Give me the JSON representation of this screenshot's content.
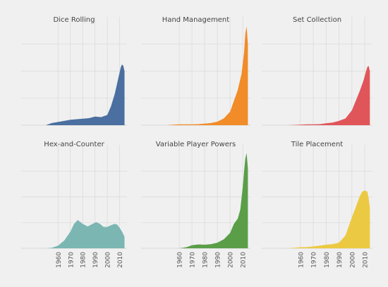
{
  "chart_data": {
    "type": "area",
    "layout": "small-multiples-2x3",
    "xlim": [
      1930,
      2016
    ],
    "xticks": [
      "1960",
      "1970",
      "1980",
      "1990",
      "2000",
      "2010"
    ],
    "grid": true,
    "shared_y_axis": true,
    "y_axis_labels_shown": false,
    "panels": [
      {
        "title": "Dice Rolling",
        "color": "#4a6fa0",
        "x": [
          1930,
          1950,
          1955,
          1960,
          1965,
          1970,
          1975,
          1980,
          1985,
          1990,
          1995,
          2000,
          2003,
          2006,
          2009,
          2011,
          2012,
          2013,
          2014
        ],
        "y": [
          0,
          0,
          0.8,
          1.2,
          1.6,
          2.0,
          2.2,
          2.4,
          2.6,
          3.2,
          3.0,
          3.8,
          7.0,
          11.5,
          17.5,
          21.5,
          22.5,
          22,
          20
        ]
      },
      {
        "title": "Hand Management",
        "color": "#f18c29",
        "x": [
          1930,
          1950,
          1955,
          1960,
          1965,
          1970,
          1975,
          1980,
          1985,
          1990,
          1995,
          2000,
          2003,
          2006,
          2009,
          2011,
          2012,
          2013,
          2014
        ],
        "y": [
          0,
          0,
          0.2,
          0.3,
          0.3,
          0.3,
          0.4,
          0.6,
          0.8,
          1.3,
          2.5,
          5.0,
          9.0,
          13.0,
          19.0,
          27.0,
          34.0,
          36.5,
          30
        ]
      },
      {
        "title": "Set Collection",
        "color": "#e0555a",
        "x": [
          1930,
          1950,
          1955,
          1960,
          1965,
          1970,
          1975,
          1980,
          1985,
          1990,
          1995,
          2000,
          2003,
          2006,
          2009,
          2011,
          2012,
          2013,
          2014
        ],
        "y": [
          0,
          0,
          0.1,
          0.2,
          0.3,
          0.3,
          0.4,
          0.7,
          1.0,
          1.6,
          2.5,
          5.5,
          9.0,
          12.5,
          16.5,
          20.0,
          21.5,
          22,
          20
        ]
      },
      {
        "title": "Hex-and-Counter",
        "color": "#7bb6b2",
        "x": [
          1930,
          1950,
          1955,
          1960,
          1965,
          1970,
          1973,
          1976,
          1980,
          1984,
          1988,
          1991,
          1994,
          1997,
          2000,
          2003,
          2006,
          2008,
          2010,
          2012,
          2014
        ],
        "y": [
          0,
          0,
          0.2,
          1.0,
          3.0,
          6.5,
          9.5,
          11.0,
          9.5,
          8.5,
          9.5,
          10.2,
          9.5,
          8.3,
          8.3,
          9.0,
          9.5,
          9.2,
          8.0,
          6.5,
          4.5
        ]
      },
      {
        "title": "Variable Player Powers",
        "color": "#5a9e48",
        "x": [
          1930,
          1960,
          1963,
          1966,
          1970,
          1975,
          1980,
          1985,
          1990,
          1995,
          2000,
          2003,
          2006,
          2008,
          2010,
          2011,
          2012,
          2013,
          2014
        ],
        "y": [
          0,
          0,
          0.2,
          0.5,
          1.2,
          1.5,
          1.4,
          1.6,
          2.2,
          3.5,
          6.0,
          9.5,
          11.5,
          15.0,
          24.0,
          30.0,
          35.0,
          37.0,
          31
        ]
      },
      {
        "title": "Tile Placement",
        "color": "#ecc942",
        "x": [
          1930,
          1950,
          1955,
          1960,
          1965,
          1970,
          1975,
          1980,
          1985,
          1990,
          1995,
          2000,
          2003,
          2006,
          2008,
          2010,
          2012,
          2013,
          2014
        ],
        "y": [
          0,
          0,
          0.2,
          0.4,
          0.5,
          0.7,
          1.0,
          1.4,
          1.6,
          2.2,
          5.0,
          12.0,
          16.0,
          20.0,
          22.0,
          22.5,
          22.0,
          19.5,
          16
        ]
      }
    ]
  }
}
